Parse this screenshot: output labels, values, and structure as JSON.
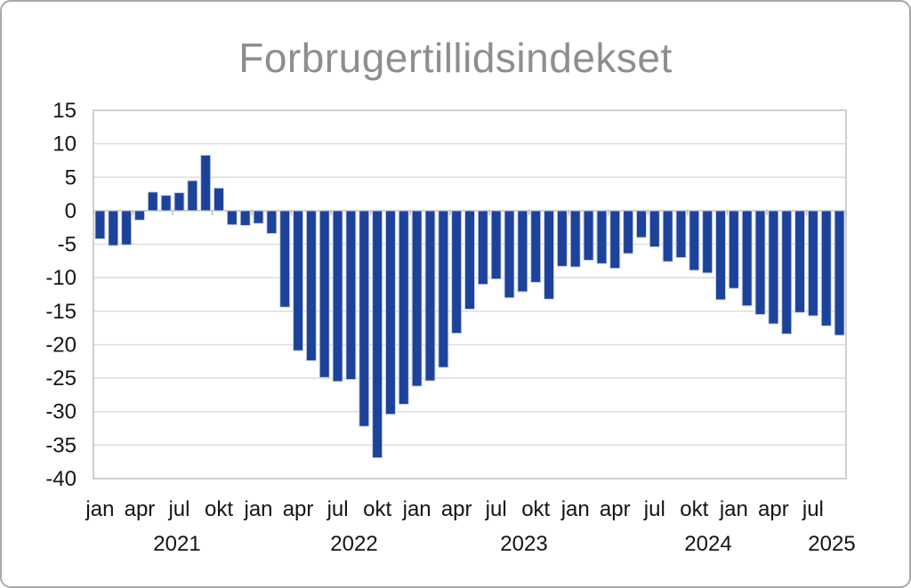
{
  "chart_data": {
    "type": "bar",
    "title": "Forbrugertillidsindekset",
    "xlabel": "",
    "ylabel": "",
    "ylim": [
      -40,
      15
    ],
    "ytick_interval": 5,
    "ytick_labels": [
      "15",
      "10",
      "5",
      "0",
      "-5",
      "-10",
      "-15",
      "-20",
      "-25",
      "-30",
      "-35",
      "-40"
    ],
    "grid": "horizontal",
    "legend": "none",
    "quarter_labels": [
      "jan",
      "apr",
      "jul",
      "okt"
    ],
    "year_labels": [
      "2021",
      "2022",
      "2023",
      "2024",
      "2025"
    ],
    "categories": [
      "jan 2021",
      "feb 2021",
      "mar 2021",
      "apr 2021",
      "maj 2021",
      "jun 2021",
      "jul 2021",
      "aug 2021",
      "sep 2021",
      "okt 2021",
      "nov 2021",
      "dec 2021",
      "jan 2022",
      "feb 2022",
      "mar 2022",
      "apr 2022",
      "maj 2022",
      "jun 2022",
      "jul 2022",
      "aug 2022",
      "sep 2022",
      "okt 2022",
      "nov 2022",
      "dec 2022",
      "jan 2023",
      "feb 2023",
      "mar 2023",
      "apr 2023",
      "maj 2023",
      "jun 2023",
      "jul 2023",
      "aug 2023",
      "sep 2023",
      "okt 2023",
      "nov 2023",
      "dec 2023",
      "jan 2024",
      "feb 2024",
      "mar 2024",
      "apr 2024",
      "maj 2024",
      "jun 2024",
      "jul 2024",
      "aug 2024",
      "sep 2024",
      "okt 2024",
      "nov 2024",
      "dec 2024",
      "jan 2025",
      "feb 2025",
      "mar 2025",
      "apr 2025",
      "maj 2025",
      "jun 2025",
      "jul 2025",
      "aug 2025",
      "sep 2025"
    ],
    "values": [
      -4.2,
      -5.2,
      -5.1,
      -1.4,
      2.8,
      2.3,
      2.7,
      4.5,
      8.3,
      3.4,
      -2.1,
      -2.2,
      -1.9,
      -3.4,
      -14.4,
      -20.9,
      -22.4,
      -24.9,
      -25.5,
      -25.2,
      -32.2,
      -36.9,
      -30.4,
      -28.9,
      -26.2,
      -25.4,
      -23.4,
      -18.3,
      -14.7,
      -11.0,
      -10.2,
      -13.0,
      -12.1,
      -10.7,
      -13.2,
      -8.3,
      -8.4,
      -7.4,
      -7.9,
      -8.6,
      -6.4,
      -4.0,
      -5.4,
      -7.6,
      -7.0,
      -8.9,
      -9.3,
      -13.3,
      -11.6,
      -14.2,
      -15.5,
      -16.9,
      -18.4,
      -15.2,
      -15.7,
      -17.2,
      -18.6
    ],
    "colors": {
      "bar": "#1c4299",
      "bar_border": "#c9d3e8",
      "grid": "#dcdcdc",
      "plot_border": "#d0d0d0",
      "zero_axis": "#bdbdbd",
      "title": "#8e8e8e",
      "axis_text": "#141414"
    }
  }
}
